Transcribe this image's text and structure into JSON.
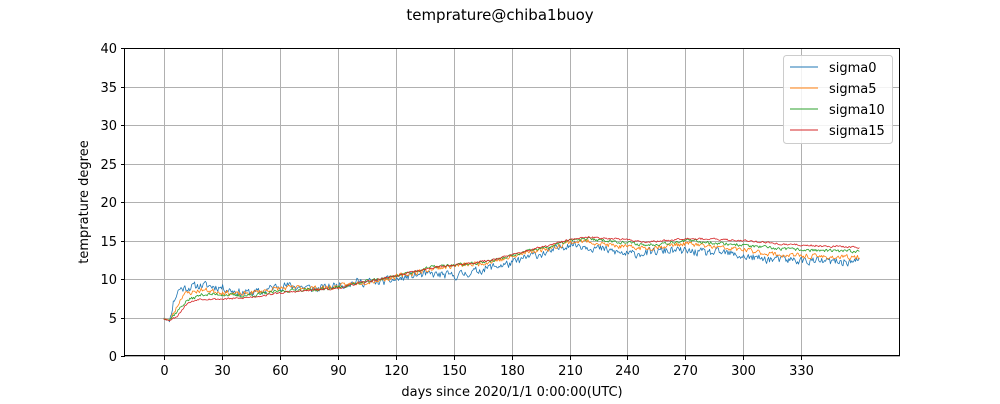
{
  "chart_data": {
    "type": "line",
    "title": "temprature@chiba1buoy",
    "xlabel": "days since 2020/1/1 0:00:00(UTC)",
    "ylabel": "temprature degree",
    "xlim": [
      -20,
      381
    ],
    "ylim": [
      0,
      40
    ],
    "xticks": [
      0,
      30,
      60,
      90,
      120,
      150,
      180,
      210,
      240,
      270,
      300,
      330
    ],
    "yticks": [
      0,
      5,
      10,
      15,
      20,
      25,
      30,
      35,
      40
    ],
    "grid": true,
    "legend_position": "upper-right",
    "series": [
      {
        "name": "sigma0",
        "color": "#1f77b4",
        "noise": 0.75,
        "seed": 11,
        "anchors": [
          [
            0,
            5.0
          ],
          [
            3,
            4.5
          ],
          [
            5,
            7.0
          ],
          [
            8,
            8.7
          ],
          [
            15,
            9.0
          ],
          [
            20,
            9.2
          ],
          [
            30,
            8.9
          ],
          [
            40,
            8.2
          ],
          [
            50,
            8.3
          ],
          [
            60,
            9.2
          ],
          [
            70,
            9.0
          ],
          [
            80,
            8.7
          ],
          [
            90,
            9.2
          ],
          [
            100,
            9.6
          ],
          [
            110,
            9.6
          ],
          [
            120,
            9.9
          ],
          [
            130,
            10.5
          ],
          [
            140,
            10.6
          ],
          [
            150,
            10.4
          ],
          [
            160,
            10.9
          ],
          [
            170,
            11.6
          ],
          [
            180,
            12.0
          ],
          [
            190,
            13.0
          ],
          [
            200,
            13.5
          ],
          [
            210,
            14.6
          ],
          [
            220,
            14.2
          ],
          [
            230,
            13.7
          ],
          [
            240,
            13.2
          ],
          [
            250,
            13.4
          ],
          [
            260,
            13.7
          ],
          [
            270,
            13.6
          ],
          [
            280,
            13.4
          ],
          [
            290,
            13.4
          ],
          [
            300,
            12.9
          ],
          [
            310,
            12.6
          ],
          [
            320,
            12.5
          ],
          [
            330,
            12.4
          ],
          [
            340,
            12.3
          ],
          [
            350,
            12.2
          ],
          [
            360,
            12.3
          ]
        ]
      },
      {
        "name": "sigma5",
        "color": "#ff7f0e",
        "noise": 0.45,
        "seed": 23,
        "anchors": [
          [
            0,
            4.9
          ],
          [
            3,
            4.6
          ],
          [
            6,
            6.0
          ],
          [
            10,
            8.0
          ],
          [
            20,
            8.6
          ],
          [
            30,
            8.3
          ],
          [
            40,
            8.0
          ],
          [
            50,
            8.4
          ],
          [
            60,
            8.8
          ],
          [
            70,
            8.9
          ],
          [
            80,
            8.8
          ],
          [
            90,
            9.0
          ],
          [
            100,
            9.5
          ],
          [
            110,
            9.8
          ],
          [
            120,
            10.3
          ],
          [
            130,
            10.8
          ],
          [
            140,
            11.4
          ],
          [
            150,
            11.7
          ],
          [
            160,
            11.9
          ],
          [
            170,
            12.3
          ],
          [
            180,
            12.8
          ],
          [
            190,
            13.6
          ],
          [
            200,
            14.0
          ],
          [
            210,
            14.8
          ],
          [
            220,
            14.9
          ],
          [
            230,
            14.4
          ],
          [
            240,
            14.1
          ],
          [
            250,
            14.0
          ],
          [
            260,
            14.3
          ],
          [
            270,
            14.6
          ],
          [
            280,
            14.3
          ],
          [
            290,
            14.0
          ],
          [
            300,
            13.8
          ],
          [
            310,
            13.4
          ],
          [
            320,
            13.1
          ],
          [
            330,
            13.0
          ],
          [
            340,
            12.9
          ],
          [
            350,
            12.8
          ],
          [
            360,
            12.8
          ]
        ]
      },
      {
        "name": "sigma10",
        "color": "#2ca02c",
        "noise": 0.3,
        "seed": 37,
        "anchors": [
          [
            0,
            4.8
          ],
          [
            3,
            4.7
          ],
          [
            7,
            5.8
          ],
          [
            12,
            7.2
          ],
          [
            20,
            8.0
          ],
          [
            30,
            8.0
          ],
          [
            40,
            7.8
          ],
          [
            50,
            8.0
          ],
          [
            60,
            8.4
          ],
          [
            70,
            8.6
          ],
          [
            80,
            8.6
          ],
          [
            90,
            8.9
          ],
          [
            100,
            9.4
          ],
          [
            110,
            9.9
          ],
          [
            120,
            10.4
          ],
          [
            130,
            11.0
          ],
          [
            140,
            11.6
          ],
          [
            150,
            11.8
          ],
          [
            160,
            12.0
          ],
          [
            170,
            12.4
          ],
          [
            180,
            13.0
          ],
          [
            190,
            13.7
          ],
          [
            200,
            14.2
          ],
          [
            210,
            15.0
          ],
          [
            220,
            15.2
          ],
          [
            230,
            15.0
          ],
          [
            240,
            14.7
          ],
          [
            250,
            14.4
          ],
          [
            260,
            14.7
          ],
          [
            270,
            15.0
          ],
          [
            280,
            14.8
          ],
          [
            290,
            14.6
          ],
          [
            300,
            14.4
          ],
          [
            310,
            14.1
          ],
          [
            320,
            13.9
          ],
          [
            330,
            13.8
          ],
          [
            340,
            13.7
          ],
          [
            350,
            13.6
          ],
          [
            360,
            13.6
          ]
        ]
      },
      {
        "name": "sigma15",
        "color": "#d62728",
        "noise": 0.18,
        "seed": 53,
        "anchors": [
          [
            0,
            4.8
          ],
          [
            3,
            4.6
          ],
          [
            7,
            5.2
          ],
          [
            12,
            6.8
          ],
          [
            18,
            7.4
          ],
          [
            30,
            7.4
          ],
          [
            40,
            7.5
          ],
          [
            50,
            7.8
          ],
          [
            60,
            8.2
          ],
          [
            70,
            8.4
          ],
          [
            80,
            8.6
          ],
          [
            90,
            8.8
          ],
          [
            100,
            9.4
          ],
          [
            110,
            9.9
          ],
          [
            120,
            10.4
          ],
          [
            130,
            11.0
          ],
          [
            140,
            11.5
          ],
          [
            150,
            11.8
          ],
          [
            160,
            12.1
          ],
          [
            170,
            12.5
          ],
          [
            180,
            13.1
          ],
          [
            190,
            13.8
          ],
          [
            200,
            14.4
          ],
          [
            210,
            15.1
          ],
          [
            220,
            15.4
          ],
          [
            230,
            15.3
          ],
          [
            240,
            15.1
          ],
          [
            250,
            14.8
          ],
          [
            260,
            15.0
          ],
          [
            270,
            15.3
          ],
          [
            280,
            15.2
          ],
          [
            290,
            15.1
          ],
          [
            300,
            15.0
          ],
          [
            310,
            14.8
          ],
          [
            320,
            14.5
          ],
          [
            330,
            14.4
          ],
          [
            340,
            14.3
          ],
          [
            350,
            14.2
          ],
          [
            360,
            14.1
          ]
        ]
      }
    ]
  }
}
